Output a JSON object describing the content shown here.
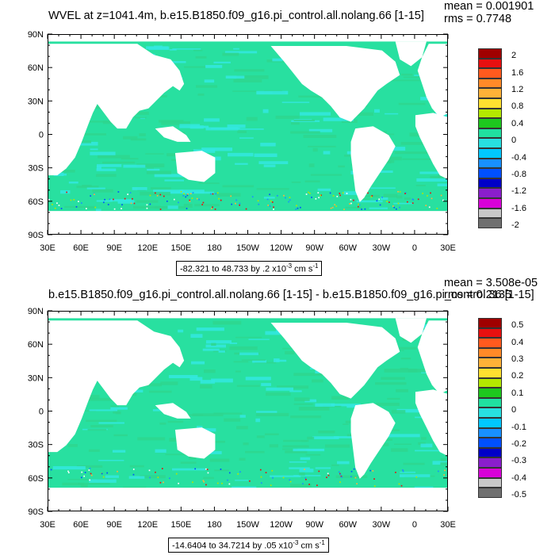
{
  "panels": [
    {
      "title": "WVEL at z=1041.4m, b.e15.B1850.f09_g16.pi_control.all.nolang.66 [1-15]",
      "mean_text": "mean = 0.001901",
      "rms_text": "rms = 0.7748",
      "range_prefix": "-82.321 to 48.733 by .2 x10",
      "range_exp": "-3",
      "range_unit": " cm s",
      "range_unit_exp": "-1",
      "colorbar_labels": [
        "2",
        "1.6",
        "1.2",
        "0.8",
        "0.4",
        "0",
        "-0.4",
        "-0.8",
        "-1.2",
        "-1.6",
        "-2"
      ]
    },
    {
      "title": "b.e15.B1850.f09_g16.pi_control.all.nolang.66 [1-15] - b.e15.B1850.f09_g16.pi_control.36 [1-15]",
      "mean_text": "mean = 3.508e-05",
      "rms_text": "rms = 0.2135",
      "range_prefix": "-14.6404 to 34.7214 by .05 x10",
      "range_exp": "-3",
      "range_unit": " cm s",
      "range_unit_exp": "-1",
      "colorbar_labels": [
        "0.5",
        "0.4",
        "0.3",
        "0.2",
        "0.1",
        "0",
        "-0.1",
        "-0.2",
        "-0.3",
        "-0.4",
        "-0.5"
      ]
    }
  ],
  "lat_labels": [
    "90N",
    "60N",
    "30N",
    "0",
    "30S",
    "60S",
    "90S"
  ],
  "lon_labels": [
    "30E",
    "60E",
    "90E",
    "120E",
    "150E",
    "180",
    "150W",
    "120W",
    "90W",
    "60W",
    "30W",
    "0",
    "30E"
  ],
  "colorbar_colors": [
    "#a00000",
    "#e81010",
    "#ff5a1e",
    "#ff8a28",
    "#ffb238",
    "#ffe030",
    "#b4e800",
    "#1ec81e",
    "#20e0a0",
    "#28e0e0",
    "#00c8ff",
    "#1890ff",
    "#0050ff",
    "#0000c8",
    "#8a1ecc",
    "#d800d8",
    "#c8c8c8",
    "#707070"
  ],
  "map_colors": {
    "land": "#ffffff",
    "ocean_base": "#28e0a0",
    "ocean_alt": "#2ed68e",
    "ocean_cyan": "#32e8e0"
  }
}
